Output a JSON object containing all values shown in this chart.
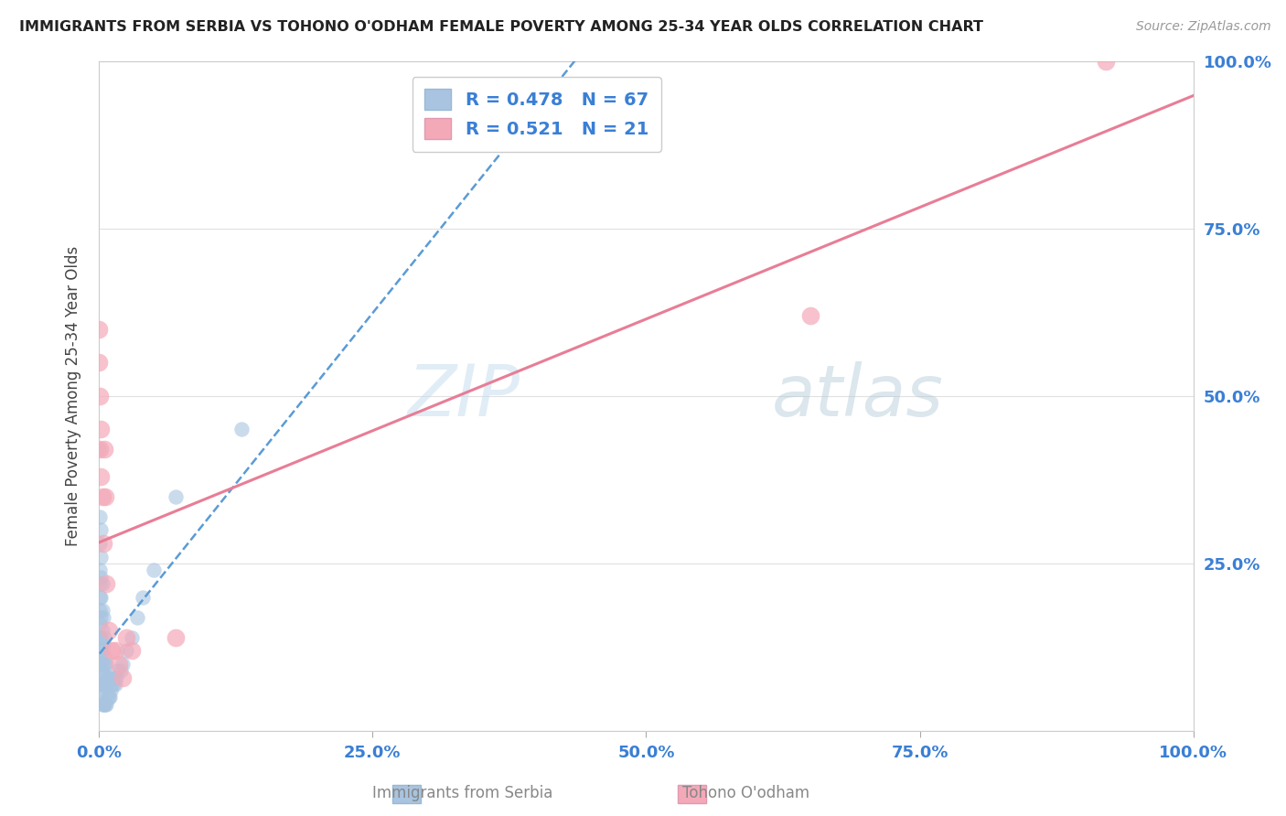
{
  "title": "IMMIGRANTS FROM SERBIA VS TOHONO O'ODHAM FEMALE POVERTY AMONG 25-34 YEAR OLDS CORRELATION CHART",
  "source": "Source: ZipAtlas.com",
  "ylabel": "Female Poverty Among 25-34 Year Olds",
  "xlabel_serbia": "Immigrants from Serbia",
  "xlabel_odham": "Tohono O'odham",
  "watermark_zip": "ZIP",
  "watermark_atlas": "atlas",
  "serbia_R": 0.478,
  "serbia_N": 67,
  "odham_R": 0.521,
  "odham_N": 21,
  "serbia_color": "#a8c4e0",
  "odham_color": "#f4a9b8",
  "serbia_line_color": "#5b9bd5",
  "odham_line_color": "#e87d96",
  "legend_r_color": "#3a7fd5",
  "title_color": "#222222",
  "axis_label_color": "#3a7fd5",
  "background_color": "#ffffff",
  "grid_color": "#e0e0e0",
  "serbia_x": [
    0.0,
    0.001,
    0.001,
    0.001,
    0.001,
    0.001,
    0.001,
    0.001,
    0.001,
    0.001,
    0.001,
    0.001,
    0.001,
    0.002,
    0.002,
    0.002,
    0.002,
    0.002,
    0.002,
    0.002,
    0.002,
    0.002,
    0.002,
    0.003,
    0.003,
    0.003,
    0.003,
    0.003,
    0.003,
    0.003,
    0.004,
    0.004,
    0.004,
    0.004,
    0.004,
    0.005,
    0.005,
    0.005,
    0.005,
    0.006,
    0.006,
    0.006,
    0.007,
    0.007,
    0.007,
    0.008,
    0.008,
    0.009,
    0.009,
    0.01,
    0.01,
    0.011,
    0.012,
    0.013,
    0.014,
    0.015,
    0.016,
    0.017,
    0.02,
    0.022,
    0.025,
    0.03,
    0.035,
    0.04,
    0.05,
    0.07,
    0.13
  ],
  "serbia_y": [
    0.42,
    0.06,
    0.08,
    0.1,
    0.12,
    0.14,
    0.16,
    0.18,
    0.2,
    0.22,
    0.24,
    0.28,
    0.32,
    0.05,
    0.07,
    0.09,
    0.11,
    0.14,
    0.17,
    0.2,
    0.23,
    0.26,
    0.3,
    0.04,
    0.07,
    0.09,
    0.12,
    0.15,
    0.18,
    0.22,
    0.04,
    0.07,
    0.1,
    0.13,
    0.17,
    0.04,
    0.07,
    0.1,
    0.14,
    0.04,
    0.07,
    0.11,
    0.04,
    0.07,
    0.1,
    0.05,
    0.08,
    0.05,
    0.08,
    0.05,
    0.08,
    0.06,
    0.07,
    0.07,
    0.08,
    0.07,
    0.08,
    0.09,
    0.09,
    0.1,
    0.12,
    0.14,
    0.17,
    0.2,
    0.24,
    0.35,
    0.45
  ],
  "odham_x": [
    0.0,
    0.0,
    0.001,
    0.001,
    0.002,
    0.002,
    0.003,
    0.004,
    0.005,
    0.006,
    0.007,
    0.009,
    0.012,
    0.015,
    0.018,
    0.022,
    0.025,
    0.03,
    0.07,
    0.65,
    0.92
  ],
  "odham_y": [
    0.55,
    0.6,
    0.42,
    0.5,
    0.38,
    0.45,
    0.35,
    0.28,
    0.42,
    0.35,
    0.22,
    0.15,
    0.12,
    0.12,
    0.1,
    0.08,
    0.14,
    0.12,
    0.14,
    0.62,
    1.0
  ],
  "xlim": [
    0.0,
    1.0
  ],
  "ylim": [
    0.0,
    1.0
  ],
  "xticks": [
    0.0,
    0.25,
    0.5,
    0.75,
    1.0
  ],
  "yticks": [
    0.0,
    0.25,
    0.5,
    0.75,
    1.0
  ],
  "xticklabels": [
    "0.0%",
    "25.0%",
    "50.0%",
    "75.0%",
    "100.0%"
  ],
  "yticklabels_right": [
    "",
    "25.0%",
    "50.0%",
    "75.0%",
    "100.0%"
  ]
}
